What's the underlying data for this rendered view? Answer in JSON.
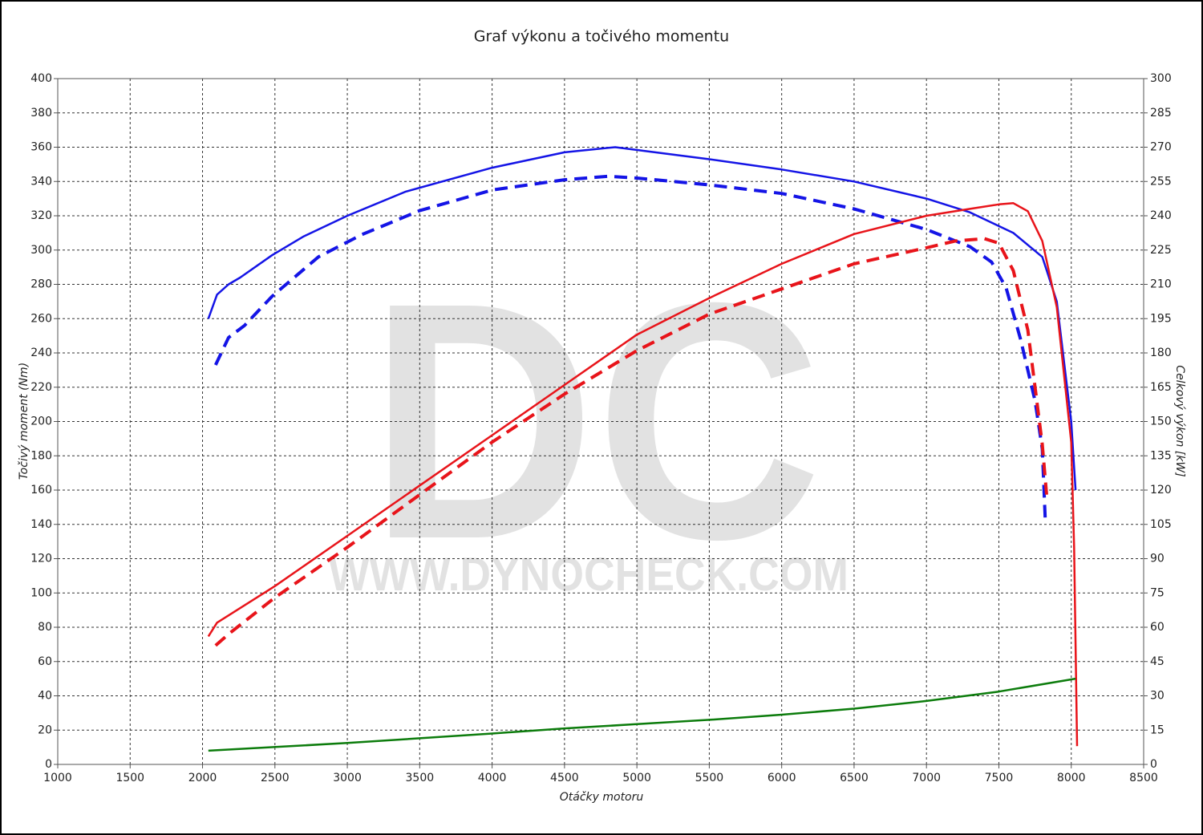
{
  "chart_data": {
    "type": "line",
    "title": "Graf výkonu a točivého momentu",
    "x_label": "Otáčky motoru",
    "y_label": "Točivý moment (Nm)",
    "y2_label": "Celkový výkon [kW]",
    "watermark": {
      "logo": "DC",
      "url": "WWW.DYNOCHECK.COM"
    },
    "xlim": [
      1000,
      8500
    ],
    "xticks": [
      1000,
      1500,
      2000,
      2500,
      3000,
      3500,
      4000,
      4500,
      5000,
      5500,
      6000,
      6500,
      7000,
      7500,
      8000,
      8500
    ],
    "ylim": [
      0,
      400
    ],
    "yticks": [
      0,
      20,
      40,
      60,
      80,
      100,
      120,
      140,
      160,
      180,
      200,
      220,
      240,
      260,
      280,
      300,
      320,
      340,
      360,
      380,
      400
    ],
    "y2lim": [
      0,
      300
    ],
    "y2ticks": [
      0,
      15,
      30,
      45,
      60,
      75,
      90,
      105,
      120,
      135,
      150,
      165,
      180,
      195,
      210,
      225,
      240,
      255,
      270,
      285,
      300
    ],
    "grid": true,
    "series": [
      {
        "color": "#1414e6",
        "line_style": "solid",
        "axis": "y",
        "x": [
          2040,
          2100,
          2180,
          2260,
          2480,
          2700,
          3000,
          3400,
          4000,
          4500,
          4850,
          5500,
          6000,
          6500,
          7000,
          7300,
          7600,
          7800,
          7900,
          8000,
          8030
        ],
        "values": [
          260,
          274,
          280,
          284,
          297,
          308,
          320,
          334,
          348,
          357,
          360,
          353,
          347,
          340,
          330,
          322,
          310,
          296,
          270,
          200,
          160
        ]
      },
      {
        "color": "#1414e6",
        "line_style": "dashed",
        "axis": "y",
        "x": [
          2090,
          2180,
          2290,
          2480,
          2800,
          3100,
          3500,
          4000,
          4500,
          4800,
          5000,
          5500,
          6000,
          6500,
          7000,
          7300,
          7450,
          7550,
          7650,
          7750,
          7800,
          7820
        ],
        "values": [
          233,
          249,
          256,
          273,
          296,
          309,
          323,
          335,
          341,
          343,
          342,
          338,
          333,
          324,
          312,
          302,
          293,
          278,
          248,
          212,
          184,
          144
        ]
      },
      {
        "color": "#e8141a",
        "line_style": "solid",
        "axis": "y2",
        "x": [
          2040,
          2100,
          2250,
          2500,
          3000,
          3500,
          4000,
          4500,
          5000,
          5500,
          6000,
          6500,
          7000,
          7300,
          7500,
          7600,
          7700,
          7800,
          7900,
          8000,
          8020,
          8040
        ],
        "values": [
          56,
          62,
          68,
          78,
          100,
          122,
          144,
          166,
          188,
          204,
          219,
          232,
          240,
          243,
          245,
          245.5,
          242,
          229,
          200,
          141,
          95,
          8
        ]
      },
      {
        "color": "#e8141a",
        "line_style": "dashed",
        "axis": "y2",
        "x": [
          2090,
          2180,
          2500,
          3000,
          3500,
          4000,
          4500,
          5000,
          5500,
          6000,
          6500,
          7000,
          7200,
          7400,
          7500,
          7600,
          7700,
          7800,
          7830
        ],
        "values": [
          52,
          57,
          73,
          95,
          118,
          141,
          162,
          181,
          197,
          208,
          219,
          226,
          229,
          230,
          228,
          216,
          190,
          140,
          118
        ]
      },
      {
        "color": "#0c7c0c",
        "line_style": "solid",
        "axis": "y",
        "x": [
          2040,
          3000,
          4000,
          4500,
          5000,
          5500,
          6000,
          6500,
          7000,
          7500,
          8030
        ],
        "values": [
          8,
          12.5,
          18,
          21,
          23.5,
          26,
          29,
          32.5,
          37,
          42.5,
          50
        ]
      }
    ]
  }
}
